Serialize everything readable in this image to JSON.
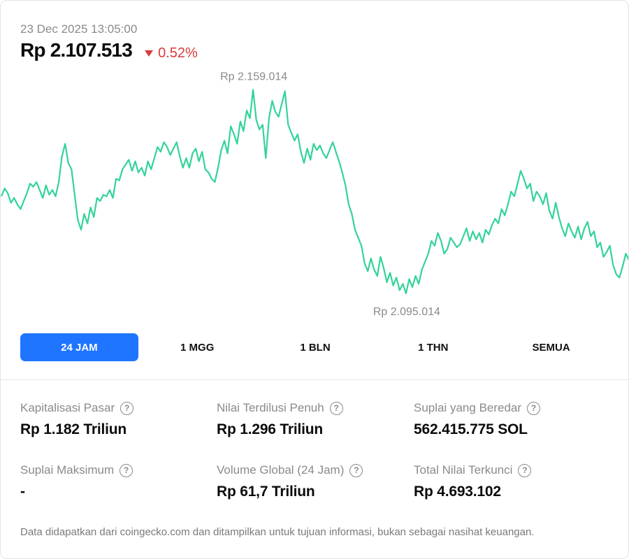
{
  "header": {
    "timestamp": "23 Dec 2025 13:05:00",
    "price": "Rp 2.107.513",
    "change": "0.52%",
    "change_direction": "down",
    "down_color": "#d93b3b",
    "line_color": "#34d399",
    "accent_color": "#1f75ff"
  },
  "chart_data": {
    "type": "line",
    "high_label": "Rp 2.159.014",
    "low_label": "Rp 2.095.014",
    "ylim": [
      2086000,
      2165000
    ],
    "series": [
      {
        "values": [
          2125500,
          2128000,
          2126500,
          2123500,
          2125000,
          2123000,
          2121500,
          2124000,
          2126500,
          2129500,
          2128500,
          2130000,
          2127500,
          2125000,
          2129000,
          2126000,
          2127500,
          2125500,
          2130000,
          2138000,
          2142000,
          2136000,
          2134000,
          2126000,
          2118000,
          2115000,
          2120000,
          2117000,
          2122000,
          2119000,
          2125000,
          2124000,
          2126000,
          2125500,
          2127500,
          2125000,
          2131000,
          2130500,
          2134000,
          2135500,
          2137000,
          2133500,
          2136500,
          2133000,
          2134500,
          2132000,
          2136500,
          2134000,
          2137500,
          2141000,
          2139500,
          2142500,
          2141000,
          2138500,
          2140500,
          2142500,
          2138000,
          2134500,
          2137500,
          2134500,
          2139000,
          2140500,
          2136500,
          2139500,
          2134000,
          2133000,
          2131000,
          2130000,
          2134500,
          2140000,
          2143000,
          2139000,
          2147500,
          2145000,
          2142000,
          2149000,
          2146000,
          2152500,
          2150000,
          2159014,
          2149500,
          2146500,
          2148000,
          2137500,
          2150000,
          2155500,
          2152000,
          2150500,
          2154500,
          2158500,
          2148000,
          2145500,
          2143000,
          2145000,
          2139500,
          2136000,
          2140500,
          2137000,
          2142000,
          2140000,
          2141500,
          2139000,
          2137500,
          2140000,
          2142500,
          2139500,
          2136500,
          2133000,
          2129000,
          2123000,
          2120000,
          2115000,
          2112500,
          2110000,
          2104500,
          2102000,
          2106000,
          2102500,
          2100500,
          2106500,
          2103000,
          2098500,
          2101500,
          2097500,
          2100000,
          2096000,
          2098000,
          2095014,
          2099500,
          2097000,
          2100500,
          2098000,
          2102500,
          2105000,
          2107500,
          2111500,
          2110000,
          2114000,
          2111500,
          2107500,
          2109000,
          2112500,
          2111000,
          2109500,
          2110500,
          2113000,
          2115500,
          2111500,
          2114500,
          2112000,
          2114000,
          2111000,
          2115000,
          2113500,
          2116500,
          2118500,
          2117000,
          2121500,
          2119500,
          2123000,
          2127000,
          2125500,
          2129500,
          2133500,
          2131000,
          2128000,
          2129500,
          2124000,
          2127000,
          2125500,
          2123000,
          2126500,
          2121000,
          2118500,
          2123500,
          2119000,
          2115500,
          2113000,
          2117000,
          2114500,
          2112500,
          2116000,
          2112000,
          2115500,
          2117500,
          2113000,
          2114500,
          2109500,
          2111000,
          2106500,
          2108000,
          2110000,
          2104000,
          2101000,
          2100000,
          2103500,
          2107500,
          2105500
        ]
      }
    ]
  },
  "tabs": [
    {
      "label": "24 JAM",
      "active": true
    },
    {
      "label": "1 MGG",
      "active": false
    },
    {
      "label": "1 BLN",
      "active": false
    },
    {
      "label": "1 THN",
      "active": false
    },
    {
      "label": "SEMUA",
      "active": false
    }
  ],
  "stats": [
    {
      "label": "Kapitalisasi Pasar",
      "value": "Rp 1.182 Triliun",
      "help_icon": "question-circle-icon"
    },
    {
      "label": "Nilai Terdilusi Penuh",
      "value": "Rp 1.296 Triliun",
      "help_icon": "question-circle-icon"
    },
    {
      "label": "Suplai yang Beredar",
      "value": "562.415.775 SOL",
      "help_icon": "question-circle-icon"
    },
    {
      "label": "Suplai Maksimum",
      "value": "-",
      "help_icon": "question-circle-icon"
    },
    {
      "label": "Volume Global (24 Jam)",
      "value": "Rp 61,7 Triliun",
      "help_icon": "question-circle-icon"
    },
    {
      "label": "Total Nilai Terkunci",
      "value": "Rp 4.693.102",
      "help_icon": "question-circle-icon"
    }
  ],
  "help_glyph": "?",
  "footer": {
    "disclaimer": "Data didapatkan dari coingecko.com dan ditampilkan untuk tujuan informasi, bukan sebagai nasihat keuangan."
  }
}
